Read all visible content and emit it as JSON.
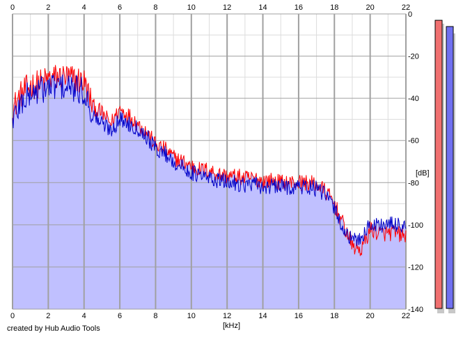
{
  "app": {
    "footer_text": "created by Hub Audio Tools"
  },
  "colors": {
    "background": "#ffffff",
    "fill": "#c0c0ff",
    "red_series": "#ff0000",
    "blue_series": "#0000c8",
    "major_grid": "#a0a0a0",
    "minor_grid": "#dcdcdc",
    "meter_left": "#f07070",
    "meter_right": "#7070f0"
  },
  "chart_data": {
    "type": "area",
    "xlabel": "[kHz]",
    "ylabel": "[dB]",
    "xlim": [
      0,
      22
    ],
    "ylim": [
      -140,
      0
    ],
    "x_ticks": [
      "0",
      "2",
      "4",
      "6",
      "8",
      "10",
      "12",
      "14",
      "16",
      "18",
      "20",
      "22"
    ],
    "y_ticks": [
      "0",
      "-20",
      "-40",
      "-60",
      "-80",
      "-100",
      "-120",
      "-140"
    ],
    "grid": true,
    "series": [
      {
        "color": "red",
        "x": [
          0,
          0.5,
          1,
          1.5,
          2,
          2.5,
          3,
          3.5,
          4,
          4.5,
          5,
          5.5,
          6,
          6.5,
          7,
          7.5,
          8,
          8.5,
          9,
          9.5,
          10,
          10.5,
          11,
          11.5,
          12,
          12.5,
          13,
          13.5,
          14,
          14.5,
          15,
          15.5,
          16,
          16.5,
          17,
          17.5,
          18,
          18.5,
          19,
          19.5,
          20,
          20.5,
          21,
          21.5,
          22
        ],
        "values": [
          -45,
          -38,
          -34,
          -33,
          -31,
          -30,
          -30,
          -31,
          -32,
          -44,
          -47,
          -52,
          -45,
          -48,
          -52,
          -56,
          -62,
          -64,
          -68,
          -70,
          -72,
          -74,
          -74,
          -76,
          -77,
          -77,
          -78,
          -78,
          -79,
          -79,
          -80,
          -80,
          -80,
          -80,
          -81,
          -84,
          -90,
          -100,
          -110,
          -112,
          -102,
          -104,
          -104,
          -104,
          -106
        ]
      },
      {
        "color": "blue",
        "x": [
          0,
          0.5,
          1,
          1.5,
          2,
          2.5,
          3,
          3.5,
          4,
          4.5,
          5,
          5.5,
          6,
          6.5,
          7,
          7.5,
          8,
          8.5,
          9,
          9.5,
          10,
          10.5,
          11,
          11.5,
          12,
          12.5,
          13,
          13.5,
          14,
          14.5,
          15,
          15.5,
          16,
          16.5,
          17,
          17.5,
          18,
          18.5,
          19,
          19.5,
          20,
          20.5,
          21,
          21.5,
          22
        ],
        "values": [
          -50,
          -42,
          -38,
          -36,
          -35,
          -34,
          -35,
          -36,
          -37,
          -48,
          -52,
          -55,
          -50,
          -52,
          -54,
          -58,
          -64,
          -66,
          -70,
          -73,
          -75,
          -77,
          -78,
          -79,
          -80,
          -80,
          -81,
          -81,
          -82,
          -82,
          -82,
          -82,
          -82,
          -82,
          -83,
          -86,
          -92,
          -102,
          -108,
          -106,
          -100,
          -100,
          -100,
          -100,
          -100
        ]
      }
    ],
    "meters": {
      "left_level_db": -3,
      "right_level_db": -6
    }
  }
}
